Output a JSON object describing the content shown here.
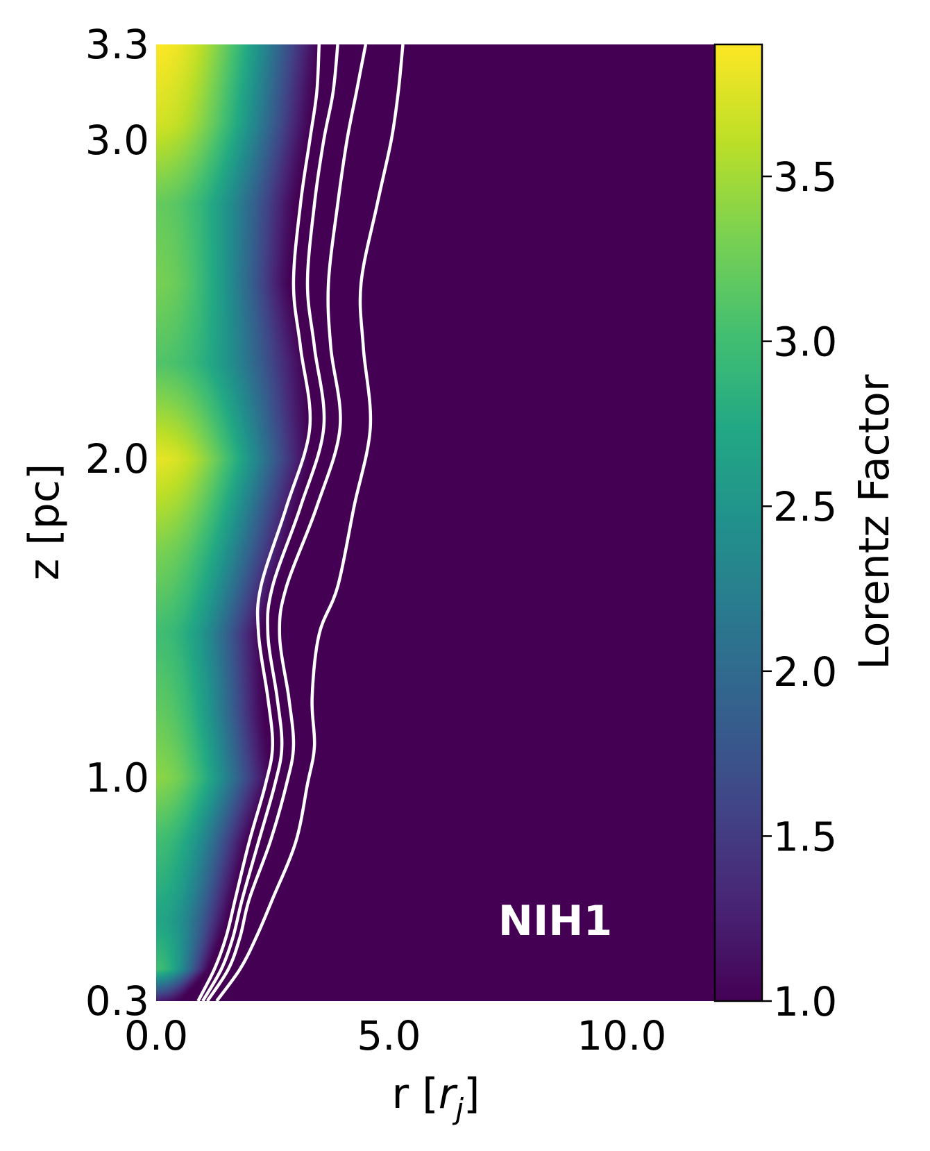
{
  "chart_data": {
    "type": "heatmap",
    "title": "",
    "xlabel_main": "r [",
    "xlabel_var": "r",
    "xlabel_sub": "j",
    "xlabel_close": "]",
    "ylabel": "z [pc]",
    "xlim": [
      0.0,
      12.0
    ],
    "ylim": [
      0.3,
      3.3
    ],
    "x_ticks": [
      0.0,
      5.0,
      10.0
    ],
    "x_tick_labels": [
      "0.0",
      "5.0",
      "10.0"
    ],
    "y_ticks": [
      0.3,
      1.0,
      2.0,
      3.0,
      3.3
    ],
    "y_tick_labels": [
      "0.3",
      "1.0",
      "2.0",
      "3.0",
      "3.3"
    ],
    "colorbar": {
      "label": "Lorentz Factor",
      "colormap": "viridis",
      "range": [
        1.0,
        3.9
      ],
      "ticks": [
        1.0,
        1.5,
        2.0,
        2.5,
        3.0,
        3.5
      ],
      "tick_labels": [
        "1.0",
        "1.5",
        "2.0",
        "2.5",
        "3.0",
        "3.5"
      ]
    },
    "annotation": "NIH1",
    "contour_color": "#ffffff",
    "jet_profile": {
      "z": [
        0.3,
        0.4,
        0.55,
        0.8,
        1.0,
        1.2,
        1.45,
        1.7,
        2.0,
        2.3,
        2.55,
        2.8,
        3.05,
        3.3
      ],
      "boundary_r": [
        0.55,
        1.15,
        1.55,
        2.0,
        2.5,
        2.35,
        2.3,
        2.85,
        3.35,
        3.25,
        2.9,
        3.05,
        3.35,
        3.55
      ],
      "core_gamma": [
        1.2,
        3.0,
        2.7,
        3.0,
        3.4,
        3.2,
        3.0,
        3.3,
        3.8,
        3.1,
        3.3,
        3.2,
        3.7,
        3.9
      ]
    },
    "contours": [
      {
        "name": "contour-1",
        "r": [
          0.9,
          1.25,
          1.5,
          1.7,
          2.0,
          2.35,
          2.5,
          2.4,
          2.2,
          2.25,
          2.8,
          3.3,
          3.1,
          2.95,
          3.1,
          3.3,
          3.45,
          3.5
        ],
        "z": [
          0.3,
          0.4,
          0.5,
          0.62,
          0.8,
          0.98,
          1.1,
          1.25,
          1.45,
          1.6,
          1.85,
          2.1,
          2.35,
          2.55,
          2.8,
          3.0,
          3.15,
          3.3
        ]
      },
      {
        "name": "contour-2",
        "r": [
          1.0,
          1.4,
          1.65,
          1.85,
          2.2,
          2.55,
          2.7,
          2.6,
          2.4,
          2.5,
          3.1,
          3.6,
          3.4,
          3.25,
          3.4,
          3.6,
          3.8,
          3.9
        ],
        "z": [
          0.3,
          0.4,
          0.5,
          0.62,
          0.8,
          0.98,
          1.1,
          1.25,
          1.45,
          1.6,
          1.85,
          2.1,
          2.35,
          2.55,
          2.8,
          3.0,
          3.15,
          3.3
        ]
      },
      {
        "name": "contour-3",
        "r": [
          1.1,
          1.55,
          1.8,
          2.0,
          2.45,
          2.8,
          2.95,
          2.85,
          2.65,
          2.8,
          3.45,
          3.95,
          3.75,
          3.7,
          3.9,
          4.1,
          4.3,
          4.5
        ],
        "z": [
          0.3,
          0.4,
          0.5,
          0.62,
          0.8,
          0.98,
          1.1,
          1.25,
          1.45,
          1.6,
          1.85,
          2.1,
          2.35,
          2.55,
          2.8,
          3.0,
          3.15,
          3.3
        ]
      },
      {
        "name": "contour-4",
        "r": [
          1.3,
          1.8,
          2.15,
          2.5,
          3.0,
          3.25,
          3.4,
          3.35,
          3.5,
          3.9,
          4.25,
          4.6,
          4.45,
          4.4,
          4.75,
          5.05,
          5.2,
          5.3
        ],
        "z": [
          0.3,
          0.4,
          0.5,
          0.62,
          0.8,
          0.98,
          1.1,
          1.25,
          1.45,
          1.6,
          1.85,
          2.1,
          2.35,
          2.55,
          2.8,
          3.0,
          3.15,
          3.3
        ]
      }
    ]
  }
}
